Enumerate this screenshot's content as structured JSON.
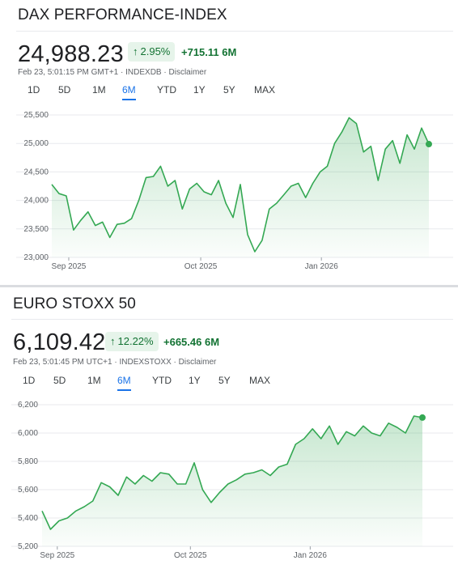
{
  "colors": {
    "accent_green": "#34a853",
    "line_green": "#34a853",
    "badge_bg": "#e6f4ea",
    "badge_text": "#137333",
    "tab_active": "#1a73e8"
  },
  "panels": [
    {
      "title": "DAX PERFORMANCE-INDEX",
      "price": "24,988.23",
      "change_pct": "2.95%",
      "change_abs": "+715.11 6M",
      "meta_time": "Feb 23, 5:01:15 PM GMT+1",
      "meta_source": "INDEXDB",
      "meta_disclaimer": "Disclaimer",
      "separator": "·",
      "arrow_icon": "up-arrow-icon",
      "ranges": [
        "1D",
        "5D",
        "1M",
        "6M",
        "YTD",
        "1Y",
        "5Y",
        "MAX"
      ],
      "active_range": "6M"
    },
    {
      "title": "EURO STOXX 50",
      "price": "6,109.42",
      "change_pct": "12.22%",
      "change_abs": "+665.46 6M",
      "meta_time": "Feb 23, 5:01:45 PM UTC+1",
      "meta_source": "INDEXSTOXX",
      "meta_disclaimer": "Disclaimer",
      "separator": "·",
      "arrow_icon": "up-arrow-icon",
      "ranges": [
        "1D",
        "5D",
        "1M",
        "6M",
        "YTD",
        "1Y",
        "5Y",
        "MAX"
      ],
      "active_range": "6M"
    }
  ],
  "chart_data": [
    {
      "type": "area",
      "series": [
        {
          "values": [
            24280,
            24120,
            24080,
            23480,
            23650,
            23800,
            23560,
            23620,
            23350,
            23580,
            23600,
            23680,
            24000,
            24400,
            24420,
            24600,
            24250,
            24350,
            23850,
            24200,
            24300,
            24150,
            24100,
            24350,
            23950,
            23700,
            24280,
            23400,
            23100,
            23300,
            23850,
            23950,
            24100,
            24250,
            24300,
            24050,
            24300,
            24500,
            24600,
            25000,
            25200,
            25450,
            25350,
            24850,
            24950,
            24350,
            24900,
            25050,
            24650,
            25150,
            24900,
            25270,
            24988
          ]
        }
      ],
      "yticks": [
        "25,500",
        "25,000",
        "24,500",
        "24,000",
        "23,500",
        "23,000"
      ],
      "ylim": [
        23000,
        25500
      ],
      "xticks": [
        "Sep 2025",
        "Oct 2025",
        "Jan 2026"
      ]
    },
    {
      "type": "area",
      "series": [
        {
          "values": [
            5450,
            5320,
            5380,
            5400,
            5450,
            5480,
            5520,
            5650,
            5620,
            5560,
            5690,
            5640,
            5700,
            5660,
            5720,
            5710,
            5640,
            5640,
            5790,
            5600,
            5510,
            5580,
            5640,
            5670,
            5710,
            5720,
            5740,
            5700,
            5760,
            5780,
            5920,
            5960,
            6030,
            5960,
            6050,
            5920,
            6010,
            5980,
            6050,
            6000,
            5980,
            6070,
            6040,
            6000,
            6120,
            6109
          ]
        }
      ],
      "yticks": [
        "6,200",
        "6,000",
        "5,800",
        "5,600",
        "5,400",
        "5,200"
      ],
      "ylim": [
        5200,
        6200
      ],
      "xticks": [
        "Sep 2025",
        "Oct 2025",
        "Jan 2026"
      ]
    }
  ]
}
